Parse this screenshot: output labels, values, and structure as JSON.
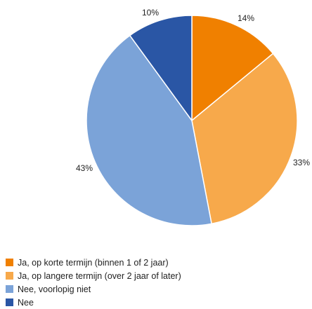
{
  "chart_data": {
    "type": "pie",
    "start_angle_deg": 0,
    "direction": "clockwise",
    "slices": [
      {
        "label": "Ja, op korte termijn (binnen 1 of 2 jaar)",
        "value": 14,
        "value_label": "14%",
        "color": "#F08000"
      },
      {
        "label": "Ja, op langere termijn (over 2 jaar of later)",
        "value": 33,
        "value_label": "33%",
        "color": "#F7A94B"
      },
      {
        "label": "Nee, voorlopig niet",
        "value": 43,
        "value_label": "43%",
        "color": "#7BA3D8"
      },
      {
        "label": "Nee",
        "value": 10,
        "value_label": "10%",
        "color": "#2A56A5"
      }
    ],
    "legend_position": "bottom-left"
  }
}
